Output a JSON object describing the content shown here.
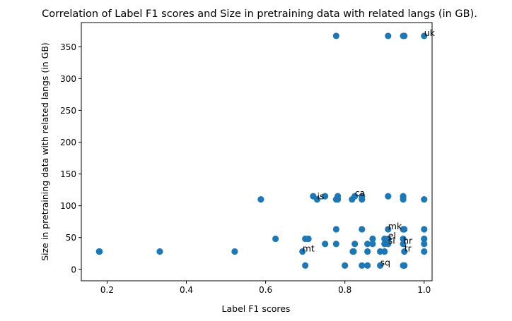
{
  "chart_data": {
    "type": "scatter",
    "title": "Correlation of Label F1 scores and Size in pretraining data with related langs (in GB).",
    "xlabel": "Label F1 scores",
    "ylabel": "Size in pretraining data with related langs (in GB)",
    "xlim": [
      0.135,
      1.02
    ],
    "ylim": [
      -18,
      388
    ],
    "xticks": [
      0.2,
      0.4,
      0.6,
      0.8,
      1.0
    ],
    "xtick_labels": [
      "0.2",
      "0.4",
      "0.6",
      "0.8",
      "1.0"
    ],
    "yticks": [
      0,
      50,
      100,
      150,
      200,
      250,
      300,
      350
    ],
    "ytick_labels": [
      "0",
      "50",
      "100",
      "150",
      "200",
      "250",
      "300",
      "350"
    ],
    "grid": false,
    "marker_color": "#1f77b4",
    "points": [
      [
        0.18,
        28
      ],
      [
        0.181,
        28
      ],
      [
        0.333,
        28
      ],
      [
        0.522,
        28
      ],
      [
        0.588,
        110
      ],
      [
        0.625,
        48
      ],
      [
        0.693,
        28
      ],
      [
        0.7,
        48
      ],
      [
        0.7,
        6
      ],
      [
        0.708,
        48
      ],
      [
        0.72,
        115
      ],
      [
        0.73,
        110
      ],
      [
        0.75,
        115
      ],
      [
        0.75,
        40
      ],
      [
        0.778,
        367
      ],
      [
        0.778,
        40
      ],
      [
        0.778,
        110
      ],
      [
        0.778,
        63
      ],
      [
        0.782,
        115
      ],
      [
        0.782,
        110
      ],
      [
        0.8,
        6
      ],
      [
        0.818,
        110
      ],
      [
        0.82,
        28
      ],
      [
        0.822,
        28
      ],
      [
        0.825,
        115
      ],
      [
        0.825,
        40
      ],
      [
        0.843,
        115
      ],
      [
        0.843,
        110
      ],
      [
        0.843,
        63
      ],
      [
        0.843,
        6
      ],
      [
        0.857,
        40
      ],
      [
        0.857,
        28
      ],
      [
        0.857,
        6
      ],
      [
        0.87,
        40
      ],
      [
        0.87,
        48
      ],
      [
        0.889,
        28
      ],
      [
        0.889,
        6
      ],
      [
        0.9,
        40
      ],
      [
        0.9,
        48
      ],
      [
        0.9,
        28
      ],
      [
        0.909,
        367
      ],
      [
        0.909,
        115
      ],
      [
        0.909,
        63
      ],
      [
        0.909,
        48
      ],
      [
        0.909,
        40
      ],
      [
        0.947,
        367
      ],
      [
        0.947,
        115
      ],
      [
        0.947,
        110
      ],
      [
        0.947,
        63
      ],
      [
        0.947,
        48
      ],
      [
        0.947,
        40
      ],
      [
        0.947,
        6
      ],
      [
        0.95,
        367
      ],
      [
        0.95,
        63
      ],
      [
        0.95,
        28
      ],
      [
        0.95,
        6
      ],
      [
        1.0,
        367
      ],
      [
        1.0,
        110
      ],
      [
        1.0,
        63
      ],
      [
        1.0,
        48
      ],
      [
        1.0,
        40
      ],
      [
        1.0,
        28
      ]
    ],
    "annotations": [
      {
        "text": "uk",
        "x": 1.0,
        "y": 367
      },
      {
        "text": "is",
        "x": 0.73,
        "y": 110
      },
      {
        "text": "ca",
        "x": 0.825,
        "y": 115
      },
      {
        "text": "mk",
        "x": 0.909,
        "y": 63
      },
      {
        "text": "el",
        "x": 0.909,
        "y": 48
      },
      {
        "text": "sl",
        "x": 0.909,
        "y": 40
      },
      {
        "text": "hr",
        "x": 0.947,
        "y": 40
      },
      {
        "text": "tr",
        "x": 0.95,
        "y": 28
      },
      {
        "text": "mt",
        "x": 0.693,
        "y": 28
      },
      {
        "text": "sq",
        "x": 0.889,
        "y": 6
      }
    ]
  }
}
